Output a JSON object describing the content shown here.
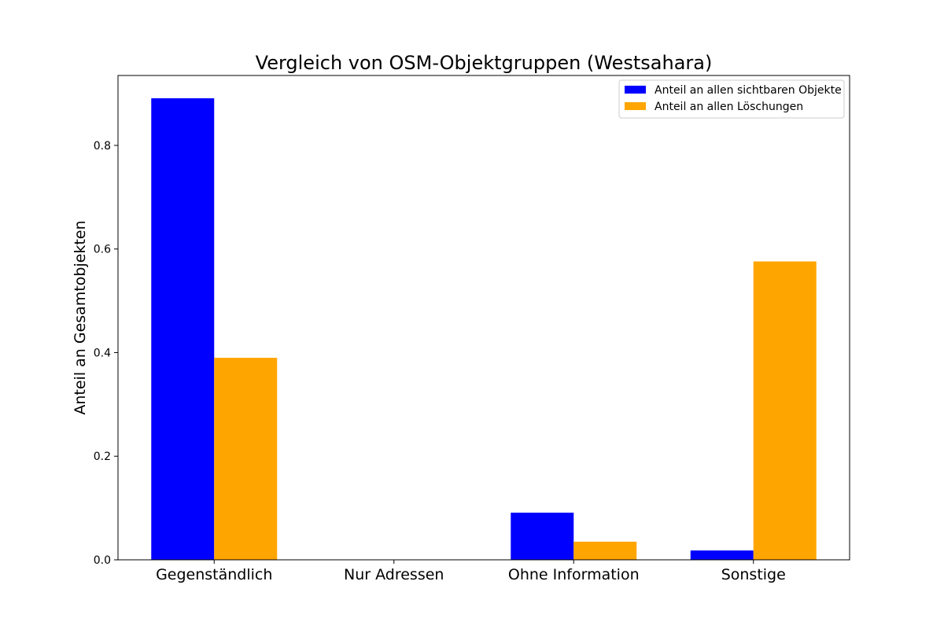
{
  "chart_data": {
    "type": "bar",
    "title": "Vergleich von OSM-Objektgruppen (Westsahara)",
    "xlabel": "",
    "ylabel": "Anteil an Gesamtobjekten",
    "categories": [
      "Gegenständlich",
      "Nur Adressen",
      "Ohne Information",
      "Sonstige"
    ],
    "series": [
      {
        "name": "Anteil an allen sichtbaren Objekte",
        "color": "#0000ff",
        "values": [
          0.891,
          0.0,
          0.091,
          0.018
        ]
      },
      {
        "name": "Anteil an allen Löschungen",
        "color": "#ffa500",
        "values": [
          0.39,
          0.0,
          0.035,
          0.576
        ]
      }
    ],
    "ylim": [
      0,
      0.935
    ],
    "yticks": [
      0.0,
      0.2,
      0.4,
      0.6,
      0.8
    ],
    "ytick_labels": [
      "0.0",
      "0.2",
      "0.4",
      "0.6",
      "0.8"
    ],
    "legend": "top-right",
    "grid": false
  }
}
